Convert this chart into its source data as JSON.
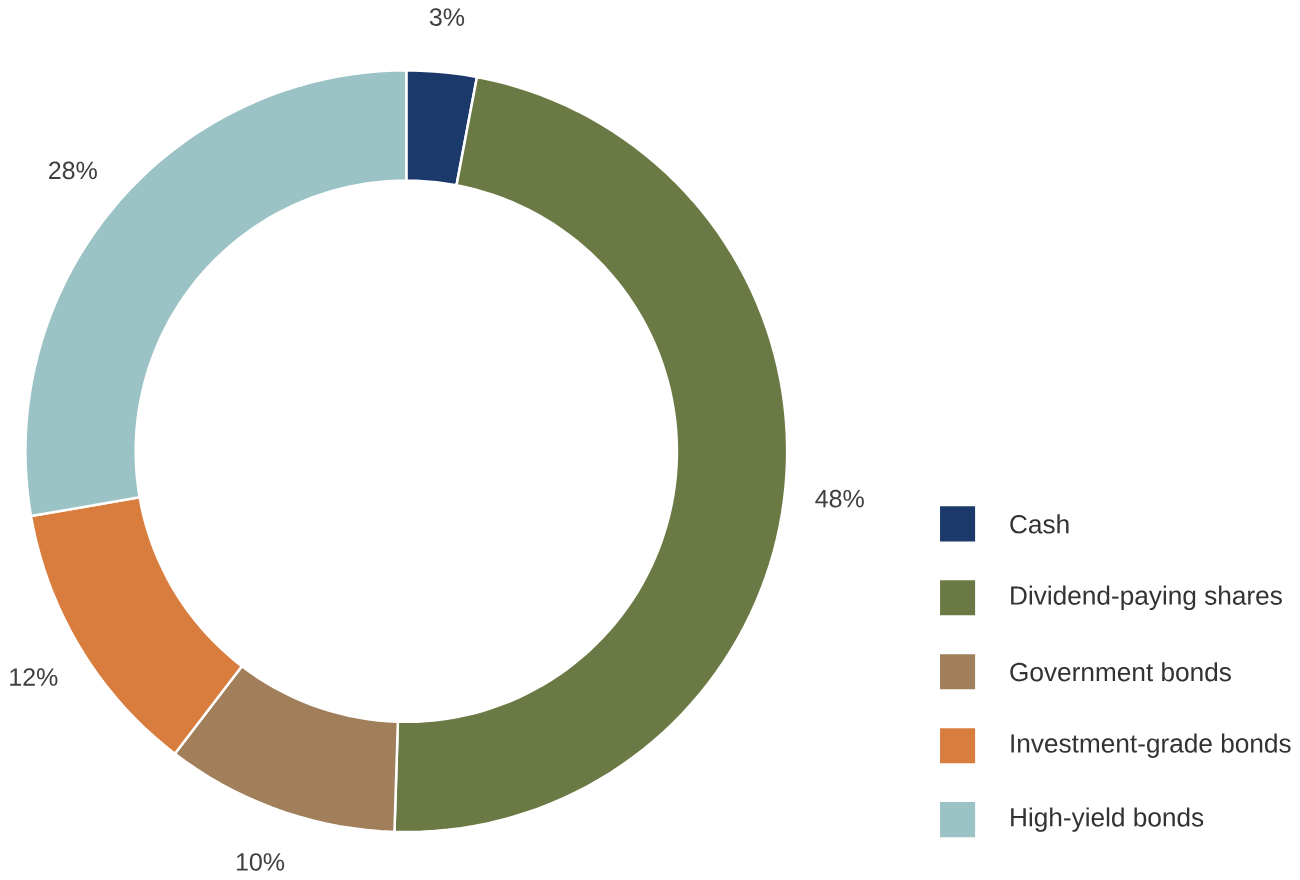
{
  "chart_data": {
    "type": "donut",
    "categories": [
      "Cash",
      "Dividend-paying shares",
      "Government bonds",
      "Investment-grade bonds",
      "High-yield bonds"
    ],
    "values": [
      3,
      48,
      10,
      12,
      28
    ],
    "value_labels": [
      "3%",
      "48%",
      "10%",
      "12%",
      "28%"
    ],
    "colors": [
      "#1b3a6b",
      "#6b7a45",
      "#a07f5a",
      "#d97d3e",
      "#9bc3c6"
    ],
    "legend": "right"
  }
}
